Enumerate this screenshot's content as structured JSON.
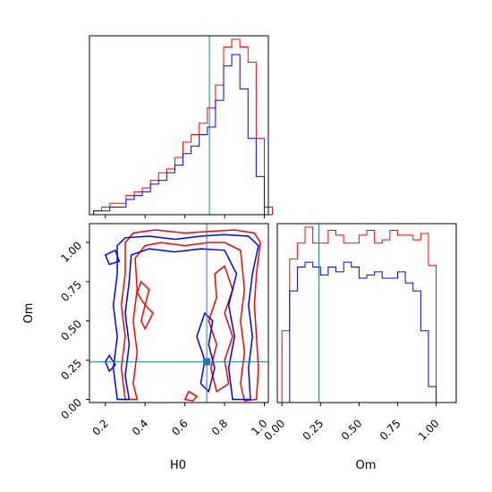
{
  "colors": {
    "series_a": "#ff0000",
    "series_b": "#0000ff",
    "truth": "#1f77b4",
    "axis": "#000000"
  },
  "chart_data": [
    {
      "type": "histogram",
      "panel": "H0-marginal",
      "x": [
        0.14,
        0.18,
        0.22,
        0.26,
        0.3,
        0.34,
        0.38,
        0.42,
        0.46,
        0.5,
        0.54,
        0.58,
        0.62,
        0.66,
        0.7,
        0.74,
        0.78,
        0.82,
        0.86,
        0.9,
        0.94,
        0.98
      ],
      "xlim": [
        0.12,
        1.0
      ],
      "series": [
        {
          "color": "red",
          "values": [
            1,
            2,
            3,
            3,
            5,
            6,
            7,
            9,
            11,
            12,
            15,
            19,
            21,
            24,
            28,
            34,
            44,
            46,
            44,
            40,
            20,
            2
          ]
        },
        {
          "color": "blue",
          "values": [
            1,
            1,
            2,
            2,
            4,
            5,
            6,
            8,
            9,
            11,
            13,
            16,
            18,
            21,
            23,
            30,
            39,
            42,
            33,
            20,
            10,
            0
          ]
        }
      ],
      "truth_x": 0.71
    },
    {
      "type": "histogram",
      "panel": "Om-marginal",
      "xlabel": "Om",
      "xticks": [
        "0.00",
        "0.25",
        "0.50",
        "0.75",
        "1.00"
      ],
      "xlim": [
        -0.03,
        1.13
      ],
      "x": [
        0,
        0.05,
        0.1,
        0.15,
        0.2,
        0.25,
        0.3,
        0.35,
        0.4,
        0.45,
        0.5,
        0.55,
        0.6,
        0.65,
        0.7,
        0.75,
        0.8,
        0.85,
        0.9,
        0.95,
        1.0,
        1.05
      ],
      "series": [
        {
          "color": "red",
          "values": [
            0.45,
            0.9,
            1.0,
            1.1,
            1.0,
            1.0,
            1.08,
            1.05,
            1.0,
            1.0,
            1.05,
            1.08,
            1.0,
            1.02,
            1.08,
            1.05,
            1.05,
            1.02,
            1.06,
            0.86,
            0.0,
            0.0
          ]
        },
        {
          "color": "blue",
          "values": [
            0.0,
            0.7,
            0.85,
            0.88,
            0.85,
            0.8,
            0.85,
            0.82,
            0.88,
            0.85,
            0.78,
            0.8,
            0.82,
            0.78,
            0.78,
            0.82,
            0.75,
            0.7,
            0.45,
            0.1,
            0.0,
            0.0
          ]
        }
      ],
      "truth_x": 0.24
    },
    {
      "type": "contour",
      "panel": "H0-vs-Om",
      "xlabel": "H0",
      "ylabel": "Om",
      "xticks": [
        "0.2",
        "0.4",
        "0.6",
        "0.8",
        "1.0"
      ],
      "yticks": [
        "0.00",
        "0.25",
        "0.50",
        "0.75",
        "1.00"
      ],
      "xlim": [
        0.12,
        1.02
      ],
      "ylim": [
        -0.02,
        1.12
      ],
      "truth": [
        0.71,
        0.24
      ],
      "series": [
        {
          "color": "red",
          "contours": [
            [
              [
                0.3,
                1.0
              ],
              [
                0.34,
                1.06
              ],
              [
                0.45,
                1.08
              ],
              [
                0.6,
                1.06
              ],
              [
                0.72,
                1.07
              ],
              [
                0.85,
                1.08
              ],
              [
                0.95,
                1.06
              ],
              [
                0.98,
                1.0
              ],
              [
                0.96,
                0.8
              ],
              [
                0.95,
                0.6
              ],
              [
                0.96,
                0.4
              ],
              [
                0.97,
                0.2
              ],
              [
                0.96,
                0.0
              ],
              [
                0.9,
                -0.01
              ],
              [
                0.88,
                0.1
              ],
              [
                0.9,
                0.3
              ],
              [
                0.88,
                0.5
              ],
              [
                0.9,
                0.7
              ],
              [
                0.88,
                0.95
              ],
              [
                0.8,
                1.0
              ],
              [
                0.72,
                1.0
              ],
              [
                0.6,
                0.98
              ],
              [
                0.48,
                1.0
              ],
              [
                0.4,
                0.98
              ],
              [
                0.35,
                0.9
              ],
              [
                0.36,
                0.7
              ],
              [
                0.34,
                0.5
              ],
              [
                0.36,
                0.3
              ],
              [
                0.34,
                0.1
              ],
              [
                0.36,
                0.0
              ],
              [
                0.3,
                0.0
              ],
              [
                0.28,
                0.2
              ],
              [
                0.3,
                0.4
              ],
              [
                0.28,
                0.6
              ],
              [
                0.3,
                0.8
              ],
              [
                0.3,
                1.0
              ]
            ],
            [
              [
                0.75,
                0.8
              ],
              [
                0.8,
                0.85
              ],
              [
                0.84,
                0.7
              ],
              [
                0.8,
                0.55
              ],
              [
                0.84,
                0.4
              ],
              [
                0.8,
                0.25
              ],
              [
                0.82,
                0.1
              ],
              [
                0.76,
                0.05
              ],
              [
                0.73,
                0.2
              ],
              [
                0.76,
                0.35
              ],
              [
                0.72,
                0.5
              ],
              [
                0.76,
                0.65
              ],
              [
                0.75,
                0.8
              ]
            ],
            [
              [
                0.38,
                0.75
              ],
              [
                0.42,
                0.7
              ],
              [
                0.4,
                0.6
              ],
              [
                0.44,
                0.55
              ],
              [
                0.4,
                0.45
              ],
              [
                0.38,
                0.5
              ],
              [
                0.4,
                0.6
              ],
              [
                0.36,
                0.68
              ],
              [
                0.38,
                0.75
              ]
            ],
            [
              [
                0.62,
                0.05
              ],
              [
                0.66,
                0.02
              ],
              [
                0.64,
                -0.01
              ],
              [
                0.6,
                0.0
              ],
              [
                0.62,
                0.05
              ]
            ]
          ]
        },
        {
          "color": "blue",
          "contours": [
            [
              [
                0.26,
                0.98
              ],
              [
                0.3,
                1.03
              ],
              [
                0.42,
                1.04
              ],
              [
                0.55,
                1.02
              ],
              [
                0.68,
                1.04
              ],
              [
                0.8,
                1.05
              ],
              [
                0.92,
                1.04
              ],
              [
                0.97,
                0.98
              ],
              [
                0.94,
                0.8
              ],
              [
                0.92,
                0.6
              ],
              [
                0.94,
                0.4
              ],
              [
                0.92,
                0.2
              ],
              [
                0.93,
                0.0
              ],
              [
                0.84,
                0.0
              ],
              [
                0.82,
                0.2
              ],
              [
                0.85,
                0.4
              ],
              [
                0.82,
                0.6
              ],
              [
                0.86,
                0.8
              ],
              [
                0.8,
                0.95
              ],
              [
                0.68,
                0.96
              ],
              [
                0.55,
                0.94
              ],
              [
                0.42,
                0.96
              ],
              [
                0.33,
                0.92
              ],
              [
                0.32,
                0.75
              ],
              [
                0.3,
                0.55
              ],
              [
                0.32,
                0.35
              ],
              [
                0.3,
                0.15
              ],
              [
                0.32,
                0.0
              ],
              [
                0.26,
                0.0
              ],
              [
                0.24,
                0.2
              ],
              [
                0.26,
                0.4
              ],
              [
                0.24,
                0.6
              ],
              [
                0.26,
                0.8
              ],
              [
                0.26,
                0.98
              ]
            ],
            [
              [
                0.7,
                0.55
              ],
              [
                0.74,
                0.5
              ],
              [
                0.72,
                0.35
              ],
              [
                0.75,
                0.2
              ],
              [
                0.72,
                0.05
              ],
              [
                0.68,
                0.1
              ],
              [
                0.7,
                0.25
              ],
              [
                0.66,
                0.4
              ],
              [
                0.7,
                0.55
              ]
            ],
            [
              [
                0.2,
                0.92
              ],
              [
                0.25,
                0.95
              ],
              [
                0.27,
                0.88
              ],
              [
                0.22,
                0.86
              ],
              [
                0.2,
                0.92
              ]
            ],
            [
              [
                0.22,
                0.28
              ],
              [
                0.25,
                0.22
              ],
              [
                0.22,
                0.18
              ],
              [
                0.2,
                0.24
              ],
              [
                0.22,
                0.28
              ]
            ]
          ]
        }
      ]
    }
  ]
}
